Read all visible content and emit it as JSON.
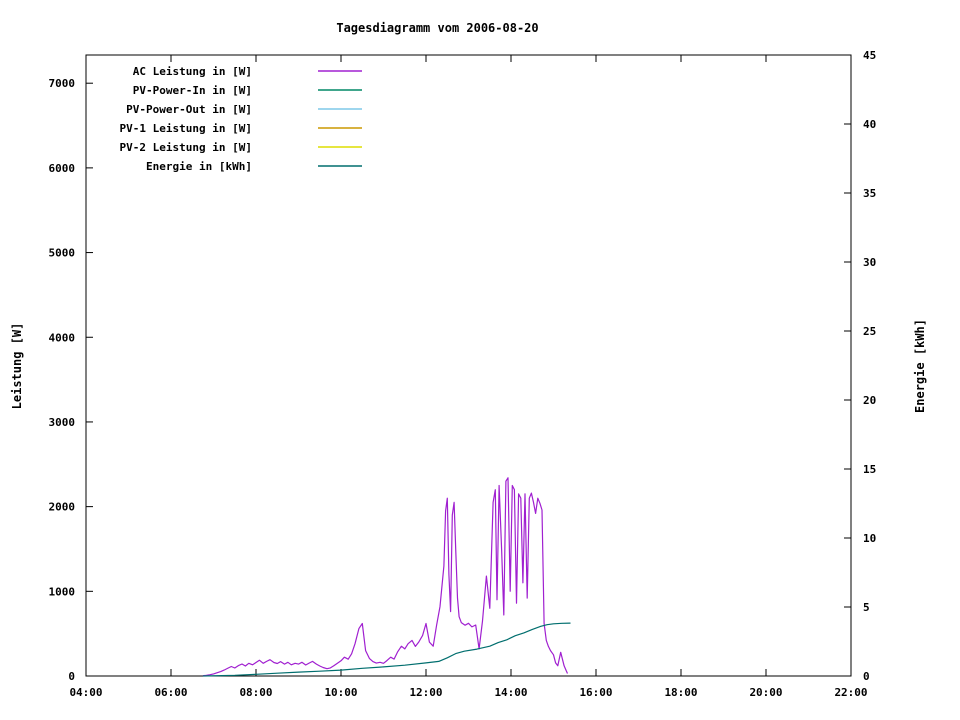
{
  "chart_data": {
    "type": "line",
    "title": "Tagesdiagramm vom 2006-08-20",
    "ylabel_left": "Leistung [W]",
    "ylabel_right": "Energie [kWh]",
    "grid": false,
    "legend_position": "top-left-inside",
    "background": "#ffffff",
    "border_color": "#000000",
    "x_axis": {
      "tick_hours": [
        4,
        6,
        8,
        10,
        12,
        14,
        16,
        18,
        20,
        22
      ],
      "tick_labels": [
        "04:00",
        "06:00",
        "08:00",
        "10:00",
        "12:00",
        "14:00",
        "16:00",
        "18:00",
        "20:00",
        "22:00"
      ],
      "range_hours": [
        4,
        22
      ]
    },
    "y_left": {
      "ticks": [
        0,
        1000,
        2000,
        3000,
        4000,
        5000,
        6000,
        7000
      ],
      "range": [
        0,
        7333
      ],
      "unit": "W"
    },
    "y_right": {
      "ticks": [
        0,
        5,
        10,
        15,
        20,
        25,
        30,
        35,
        40,
        45
      ],
      "range": [
        0,
        45
      ],
      "unit": "kWh"
    },
    "series": [
      {
        "name": "AC Leistung in [W]",
        "slug": "ac-leistung",
        "color": "#a020d0",
        "axis": "left",
        "points": [
          [
            6.75,
            3
          ],
          [
            6.83,
            8
          ],
          [
            6.92,
            15
          ],
          [
            7.0,
            25
          ],
          [
            7.08,
            38
          ],
          [
            7.17,
            52
          ],
          [
            7.25,
            70
          ],
          [
            7.33,
            90
          ],
          [
            7.42,
            112
          ],
          [
            7.5,
            95
          ],
          [
            7.58,
            122
          ],
          [
            7.67,
            142
          ],
          [
            7.75,
            118
          ],
          [
            7.83,
            150
          ],
          [
            7.92,
            132
          ],
          [
            8.0,
            160
          ],
          [
            8.08,
            186
          ],
          [
            8.17,
            150
          ],
          [
            8.25,
            172
          ],
          [
            8.33,
            192
          ],
          [
            8.42,
            160
          ],
          [
            8.5,
            148
          ],
          [
            8.58,
            170
          ],
          [
            8.67,
            140
          ],
          [
            8.75,
            162
          ],
          [
            8.83,
            132
          ],
          [
            8.92,
            150
          ],
          [
            9.0,
            140
          ],
          [
            9.08,
            162
          ],
          [
            9.17,
            130
          ],
          [
            9.25,
            152
          ],
          [
            9.33,
            172
          ],
          [
            9.42,
            140
          ],
          [
            9.5,
            118
          ],
          [
            9.58,
            100
          ],
          [
            9.67,
            86
          ],
          [
            9.75,
            96
          ],
          [
            9.83,
            120
          ],
          [
            9.92,
            152
          ],
          [
            10.0,
            180
          ],
          [
            10.08,
            222
          ],
          [
            10.17,
            198
          ],
          [
            10.25,
            262
          ],
          [
            10.33,
            380
          ],
          [
            10.42,
            560
          ],
          [
            10.5,
            620
          ],
          [
            10.58,
            300
          ],
          [
            10.67,
            205
          ],
          [
            10.75,
            170
          ],
          [
            10.83,
            152
          ],
          [
            10.92,
            162
          ],
          [
            11.0,
            150
          ],
          [
            11.08,
            182
          ],
          [
            11.17,
            222
          ],
          [
            11.25,
            200
          ],
          [
            11.33,
            282
          ],
          [
            11.42,
            352
          ],
          [
            11.5,
            320
          ],
          [
            11.58,
            382
          ],
          [
            11.67,
            420
          ],
          [
            11.75,
            350
          ],
          [
            11.83,
            402
          ],
          [
            11.92,
            480
          ],
          [
            12.0,
            620
          ],
          [
            12.08,
            400
          ],
          [
            12.17,
            352
          ],
          [
            12.25,
            600
          ],
          [
            12.33,
            820
          ],
          [
            12.42,
            1300
          ],
          [
            12.46,
            1950
          ],
          [
            12.5,
            2100
          ],
          [
            12.54,
            1200
          ],
          [
            12.58,
            760
          ],
          [
            12.62,
            1900
          ],
          [
            12.66,
            2050
          ],
          [
            12.7,
            1500
          ],
          [
            12.74,
            920
          ],
          [
            12.78,
            700
          ],
          [
            12.83,
            630
          ],
          [
            12.92,
            600
          ],
          [
            13.0,
            622
          ],
          [
            13.08,
            580
          ],
          [
            13.17,
            602
          ],
          [
            13.25,
            320
          ],
          [
            13.33,
            650
          ],
          [
            13.42,
            1180
          ],
          [
            13.5,
            800
          ],
          [
            13.58,
            2050
          ],
          [
            13.63,
            2200
          ],
          [
            13.67,
            900
          ],
          [
            13.72,
            2250
          ],
          [
            13.78,
            1500
          ],
          [
            13.83,
            720
          ],
          [
            13.88,
            2300
          ],
          [
            13.93,
            2340
          ],
          [
            13.98,
            1000
          ],
          [
            14.03,
            2250
          ],
          [
            14.08,
            2200
          ],
          [
            14.13,
            860
          ],
          [
            14.18,
            2150
          ],
          [
            14.23,
            2100
          ],
          [
            14.28,
            1100
          ],
          [
            14.33,
            2150
          ],
          [
            14.38,
            920
          ],
          [
            14.43,
            2100
          ],
          [
            14.48,
            2160
          ],
          [
            14.53,
            2050
          ],
          [
            14.58,
            1920
          ],
          [
            14.63,
            2100
          ],
          [
            14.68,
            2040
          ],
          [
            14.73,
            1960
          ],
          [
            14.78,
            620
          ],
          [
            14.83,
            420
          ],
          [
            14.88,
            350
          ],
          [
            14.93,
            300
          ],
          [
            15.0,
            250
          ],
          [
            15.05,
            155
          ],
          [
            15.1,
            120
          ],
          [
            15.17,
            280
          ],
          [
            15.25,
            120
          ],
          [
            15.3,
            60
          ],
          [
            15.33,
            30
          ]
        ]
      },
      {
        "name": "PV-Power-In in [W]",
        "slug": "pv-power-in",
        "color": "#008866",
        "axis": "left",
        "points": []
      },
      {
        "name": "PV-Power-Out in [W]",
        "slug": "pv-power-out",
        "color": "#7ec9e8",
        "axis": "left",
        "points": []
      },
      {
        "name": "PV-1 Leistung in [W]",
        "slug": "pv-1-leistung",
        "color": "#cc9900",
        "axis": "left",
        "points": []
      },
      {
        "name": "PV-2 Leistung in [W]",
        "slug": "pv-2-leistung",
        "color": "#dede00",
        "axis": "left",
        "points": []
      },
      {
        "name": "Energie in [kWh]",
        "slug": "energie",
        "color": "#006e6e",
        "axis": "right",
        "points": [
          [
            6.75,
            0.0
          ],
          [
            7.5,
            0.05
          ],
          [
            8.0,
            0.12
          ],
          [
            8.5,
            0.2
          ],
          [
            9.0,
            0.28
          ],
          [
            9.5,
            0.35
          ],
          [
            10.0,
            0.43
          ],
          [
            10.5,
            0.56
          ],
          [
            11.0,
            0.66
          ],
          [
            11.5,
            0.78
          ],
          [
            12.0,
            0.95
          ],
          [
            12.3,
            1.06
          ],
          [
            12.5,
            1.32
          ],
          [
            12.7,
            1.62
          ],
          [
            12.9,
            1.8
          ],
          [
            13.2,
            1.95
          ],
          [
            13.5,
            2.16
          ],
          [
            13.7,
            2.42
          ],
          [
            13.9,
            2.62
          ],
          [
            14.1,
            2.92
          ],
          [
            14.3,
            3.12
          ],
          [
            14.5,
            3.38
          ],
          [
            14.7,
            3.6
          ],
          [
            14.85,
            3.72
          ],
          [
            15.0,
            3.78
          ],
          [
            15.2,
            3.82
          ],
          [
            15.4,
            3.83
          ]
        ]
      }
    ]
  }
}
